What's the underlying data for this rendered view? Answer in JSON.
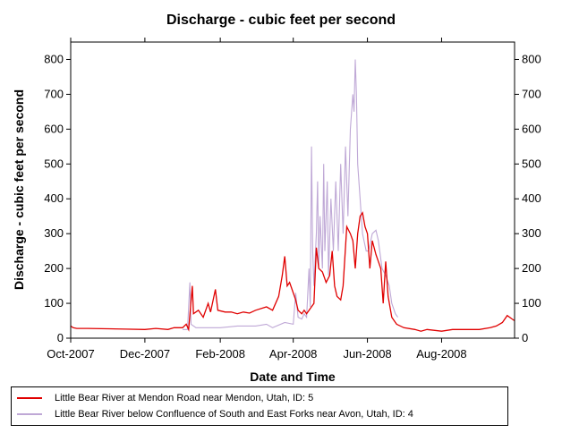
{
  "chart_data": {
    "type": "line",
    "title": "Discharge - cubic feet per second",
    "xlabel": "Date and Time",
    "ylabel": "Discharge - cubic feet per second",
    "xlim": [
      "2007-10-01",
      "2008-09-30"
    ],
    "ylim": [
      0,
      850
    ],
    "y_ticks": [
      0,
      100,
      200,
      300,
      400,
      500,
      600,
      700,
      800
    ],
    "x_ticks": [
      {
        "date": "2007-10-01",
        "label": "Oct-2007"
      },
      {
        "date": "2007-12-01",
        "label": "Dec-2007"
      },
      {
        "date": "2008-02-01",
        "label": "Feb-2008"
      },
      {
        "date": "2008-04-01",
        "label": "Apr-2008"
      },
      {
        "date": "2008-06-01",
        "label": "Jun-2008"
      },
      {
        "date": "2008-08-01",
        "label": "Aug-2008"
      }
    ],
    "grid": false,
    "legend_position": "bottom",
    "series": [
      {
        "name": "Little Bear River at Mendon Road near Mendon, Utah, ID: 5",
        "color": "#e00000",
        "points": [
          [
            "2007-10-01",
            35
          ],
          [
            "2007-10-03",
            30
          ],
          [
            "2007-10-06",
            28
          ],
          [
            "2007-10-15",
            28
          ],
          [
            "2007-11-01",
            27
          ],
          [
            "2007-11-15",
            26
          ],
          [
            "2007-12-01",
            25
          ],
          [
            "2007-12-10",
            28
          ],
          [
            "2007-12-20",
            25
          ],
          [
            "2007-12-25",
            30
          ],
          [
            "2008-01-01",
            30
          ],
          [
            "2008-01-04",
            40
          ],
          [
            "2008-01-06",
            25
          ],
          [
            "2008-01-09",
            150
          ],
          [
            "2008-01-10",
            70
          ],
          [
            "2008-01-14",
            80
          ],
          [
            "2008-01-18",
            60
          ],
          [
            "2008-01-22",
            100
          ],
          [
            "2008-01-24",
            75
          ],
          [
            "2008-01-28",
            140
          ],
          [
            "2008-01-30",
            80
          ],
          [
            "2008-02-05",
            75
          ],
          [
            "2008-02-10",
            75
          ],
          [
            "2008-02-15",
            70
          ],
          [
            "2008-02-20",
            75
          ],
          [
            "2008-02-25",
            72
          ],
          [
            "2008-03-01",
            80
          ],
          [
            "2008-03-10",
            90
          ],
          [
            "2008-03-15",
            80
          ],
          [
            "2008-03-20",
            120
          ],
          [
            "2008-03-23",
            180
          ],
          [
            "2008-03-25",
            235
          ],
          [
            "2008-03-27",
            150
          ],
          [
            "2008-03-29",
            160
          ],
          [
            "2008-04-01",
            130
          ],
          [
            "2008-04-03",
            110
          ],
          [
            "2008-04-05",
            80
          ],
          [
            "2008-04-08",
            70
          ],
          [
            "2008-04-10",
            80
          ],
          [
            "2008-04-12",
            70
          ],
          [
            "2008-04-15",
            85
          ],
          [
            "2008-04-18",
            100
          ],
          [
            "2008-04-20",
            260
          ],
          [
            "2008-04-22",
            200
          ],
          [
            "2008-04-25",
            190
          ],
          [
            "2008-04-28",
            160
          ],
          [
            "2008-05-01",
            180
          ],
          [
            "2008-05-03",
            250
          ],
          [
            "2008-05-05",
            150
          ],
          [
            "2008-05-07",
            120
          ],
          [
            "2008-05-10",
            110
          ],
          [
            "2008-05-12",
            150
          ],
          [
            "2008-05-15",
            320
          ],
          [
            "2008-05-18",
            300
          ],
          [
            "2008-05-20",
            280
          ],
          [
            "2008-05-22",
            200
          ],
          [
            "2008-05-24",
            300
          ],
          [
            "2008-05-26",
            350
          ],
          [
            "2008-05-28",
            360
          ],
          [
            "2008-05-30",
            320
          ],
          [
            "2008-06-01",
            300
          ],
          [
            "2008-06-03",
            200
          ],
          [
            "2008-06-05",
            280
          ],
          [
            "2008-06-08",
            240
          ],
          [
            "2008-06-10",
            220
          ],
          [
            "2008-06-12",
            200
          ],
          [
            "2008-06-14",
            100
          ],
          [
            "2008-06-16",
            220
          ],
          [
            "2008-06-18",
            120
          ],
          [
            "2008-06-21",
            60
          ],
          [
            "2008-06-25",
            40
          ],
          [
            "2008-07-01",
            30
          ],
          [
            "2008-07-10",
            25
          ],
          [
            "2008-07-15",
            20
          ],
          [
            "2008-07-20",
            25
          ],
          [
            "2008-08-01",
            20
          ],
          [
            "2008-08-10",
            25
          ],
          [
            "2008-08-20",
            25
          ],
          [
            "2008-09-01",
            25
          ],
          [
            "2008-09-10",
            30
          ],
          [
            "2008-09-15",
            35
          ],
          [
            "2008-09-20",
            45
          ],
          [
            "2008-09-24",
            65
          ],
          [
            "2008-09-28",
            55
          ],
          [
            "2008-09-30",
            50
          ]
        ]
      },
      {
        "name": "Little Bear River below Confluence of South and East Forks near Avon, Utah, ID: 4",
        "color": "#bfa8d6",
        "points": [
          [
            "2008-01-01",
            25
          ],
          [
            "2008-01-05",
            25
          ],
          [
            "2008-01-07",
            160
          ],
          [
            "2008-01-08",
            40
          ],
          [
            "2008-01-12",
            30
          ],
          [
            "2008-01-20",
            30
          ],
          [
            "2008-02-01",
            30
          ],
          [
            "2008-02-15",
            35
          ],
          [
            "2008-03-01",
            35
          ],
          [
            "2008-03-10",
            40
          ],
          [
            "2008-03-15",
            30
          ],
          [
            "2008-03-25",
            45
          ],
          [
            "2008-04-01",
            40
          ],
          [
            "2008-04-03",
            130
          ],
          [
            "2008-04-05",
            60
          ],
          [
            "2008-04-08",
            55
          ],
          [
            "2008-04-10",
            70
          ],
          [
            "2008-04-12",
            60
          ],
          [
            "2008-04-14",
            200
          ],
          [
            "2008-04-15",
            90
          ],
          [
            "2008-04-16",
            550
          ],
          [
            "2008-04-17",
            250
          ],
          [
            "2008-04-18",
            150
          ],
          [
            "2008-04-20",
            300
          ],
          [
            "2008-04-21",
            450
          ],
          [
            "2008-04-22",
            200
          ],
          [
            "2008-04-23",
            350
          ],
          [
            "2008-04-25",
            200
          ],
          [
            "2008-04-26",
            500
          ],
          [
            "2008-04-27",
            250
          ],
          [
            "2008-04-29",
            450
          ],
          [
            "2008-04-30",
            180
          ],
          [
            "2008-05-02",
            400
          ],
          [
            "2008-05-04",
            250
          ],
          [
            "2008-05-06",
            450
          ],
          [
            "2008-05-08",
            250
          ],
          [
            "2008-05-10",
            500
          ],
          [
            "2008-05-12",
            300
          ],
          [
            "2008-05-14",
            550
          ],
          [
            "2008-05-16",
            350
          ],
          [
            "2008-05-18",
            600
          ],
          [
            "2008-05-20",
            700
          ],
          [
            "2008-05-21",
            650
          ],
          [
            "2008-05-22",
            800
          ],
          [
            "2008-05-23",
            700
          ],
          [
            "2008-05-24",
            500
          ],
          [
            "2008-05-26",
            400
          ],
          [
            "2008-05-28",
            300
          ],
          [
            "2008-05-31",
            250
          ],
          [
            "2008-06-02",
            250
          ],
          [
            "2008-06-05",
            300
          ],
          [
            "2008-06-08",
            310
          ],
          [
            "2008-06-10",
            280
          ],
          [
            "2008-06-13",
            200
          ],
          [
            "2008-06-16",
            180
          ],
          [
            "2008-06-19",
            150
          ],
          [
            "2008-06-21",
            100
          ],
          [
            "2008-06-24",
            70
          ],
          [
            "2008-06-26",
            60
          ]
        ]
      }
    ]
  }
}
